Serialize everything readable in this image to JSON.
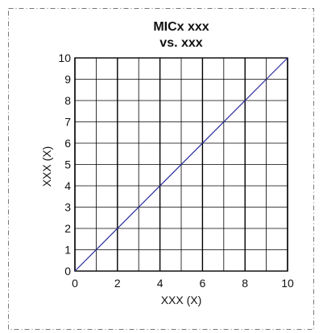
{
  "chart_data": {
    "type": "line",
    "title_lines": [
      "MICx xxx",
      "vs. xxx"
    ],
    "xlabel": "XXX (X)",
    "ylabel": "XXX (X)",
    "xlim": [
      0,
      10
    ],
    "ylim": [
      0,
      10
    ],
    "x_ticks": [
      0,
      2,
      4,
      6,
      8,
      10
    ],
    "y_ticks": [
      0,
      1,
      2,
      3,
      4,
      5,
      6,
      7,
      8,
      9,
      10
    ],
    "grid": true,
    "legend": "none",
    "series": [
      {
        "x": [
          0,
          10
        ],
        "y": [
          0,
          10
        ],
        "color": "#2b2b9a"
      }
    ],
    "colors": {
      "frame": "#777777",
      "grid": "#000000",
      "line": "#2b2b9a"
    }
  }
}
